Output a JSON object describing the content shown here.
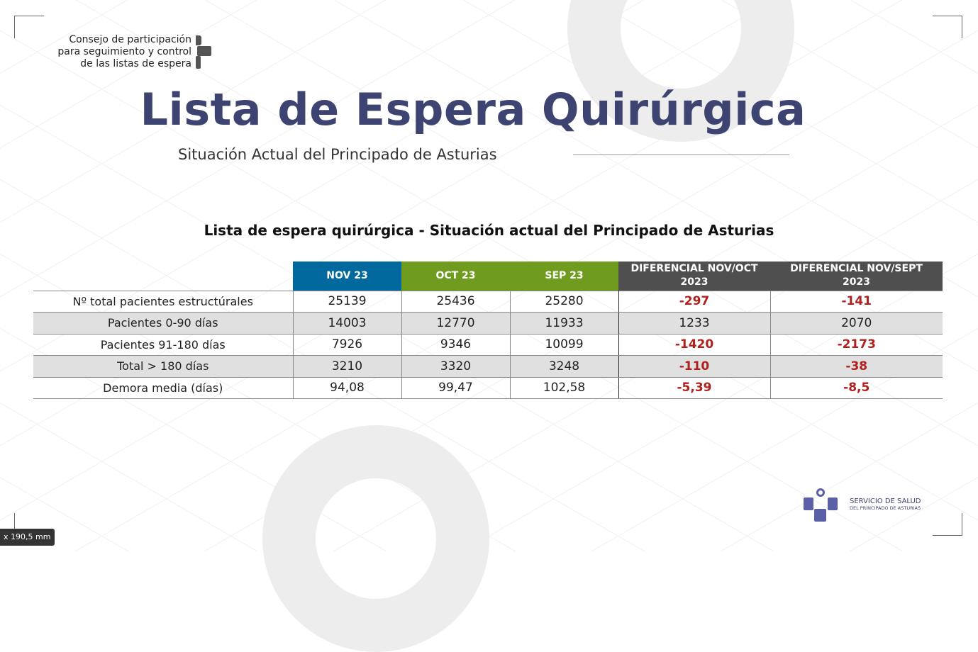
{
  "council": {
    "line1": "Consejo de participación",
    "line2": "para seguimiento y control",
    "line3": "de las listas de espera"
  },
  "title": "Lista de Espera Quirúrgica",
  "subtitle": "Situación Actual del Principado de Asturias",
  "table_title": "Lista de espera quirúrgica - Situación actual del Principado de Asturias",
  "colors": {
    "nov": "#02699e",
    "oct": "#6f9c1f",
    "sep": "#6f9c1f",
    "diff": "#4f4f4f",
    "negative": "#b0201c",
    "title": "#3d4471"
  },
  "headers": [
    "NOV 23",
    "OCT 23",
    "SEP 23",
    "DIFERENCIAL NOV/OCT 2023",
    "DIFERENCIAL NOV/SEPT 2023"
  ],
  "rows": [
    {
      "label": "Nº total pacientes estructúrales",
      "nov": "25139",
      "oct": "25436",
      "sep": "25280",
      "d1": "-297",
      "d2": "-141"
    },
    {
      "label": "Pacientes 0-90 días",
      "nov": "14003",
      "oct": "12770",
      "sep": "11933",
      "d1": "1233",
      "d2": "2070"
    },
    {
      "label": "Pacientes 91-180 días",
      "nov": "7926",
      "oct": "9346",
      "sep": "10099",
      "d1": "-1420",
      "d2": "-2173"
    },
    {
      "label": "Total > 180 días",
      "nov": "3210",
      "oct": "3320",
      "sep": "3248",
      "d1": "-110",
      "d2": "-38"
    },
    {
      "label": "Demora media (días)",
      "nov": "94,08",
      "oct": "99,47",
      "sep": "102,58",
      "d1": "-5,39",
      "d2": "-8,5"
    }
  ],
  "logo": {
    "line1": "SERVICIO DE SALUD",
    "line2": "DEL PRINCIPADO DE ASTURIAS"
  },
  "tooltip": "x 190,5 mm"
}
